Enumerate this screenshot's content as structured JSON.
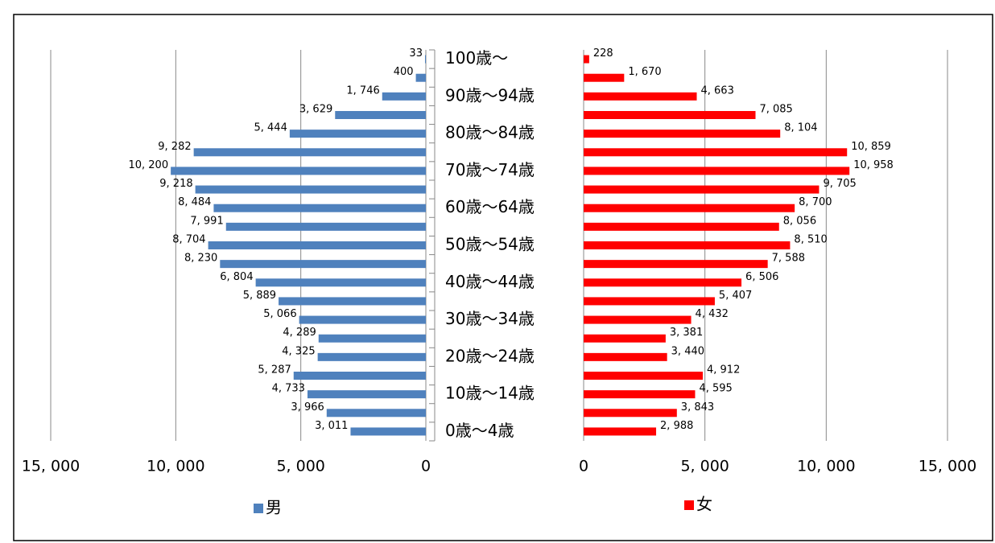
{
  "chart_data": [
    {
      "type": "bar",
      "orientation": "horizontal",
      "categories": [
        "0歳～4歳",
        null,
        "10歳～14歳",
        null,
        "20歳～24歳",
        null,
        "30歳～34歳",
        null,
        "40歳～44歳",
        null,
        "50歳～54歳",
        null,
        "60歳～64歳",
        null,
        "70歳～74歳",
        null,
        "80歳～84歳",
        null,
        "90歳～94歳",
        null,
        "100歳～"
      ],
      "series": [
        {
          "name": "男",
          "color": "#4f81bd",
          "values": [
            3011,
            3966,
            4733,
            5287,
            4325,
            4289,
            5066,
            5889,
            6804,
            8230,
            8704,
            7991,
            8484,
            9218,
            10200,
            9282,
            5444,
            3629,
            1746,
            400,
            33
          ],
          "value_labels": [
            "3, 011",
            "3, 966",
            "4, 733",
            "5, 287",
            "4, 325",
            "4, 289",
            "5, 066",
            "5, 889",
            "6, 804",
            "8, 230",
            "8, 704",
            "7, 991",
            "8, 484",
            "9, 218",
            "10, 200",
            "9, 282",
            "5, 444",
            "3, 629",
            "1, 746",
            "400",
            "33"
          ]
        }
      ],
      "xlim": [
        15000,
        0
      ],
      "xticks": [
        {
          "value": 15000,
          "label": "15, 000"
        },
        {
          "value": 10000,
          "label": "10, 000"
        },
        {
          "value": 5000,
          "label": "5, 000"
        },
        0
      ],
      "grid": true
    },
    {
      "type": "bar",
      "orientation": "horizontal",
      "series": [
        {
          "name": "女",
          "color": "#ff0000",
          "values": [
            2988,
            3843,
            4595,
            4912,
            3440,
            3381,
            4432,
            5407,
            6506,
            7588,
            8510,
            8056,
            8700,
            9705,
            10958,
            10859,
            8104,
            7085,
            4663,
            1670,
            228
          ],
          "value_labels": [
            "2, 988",
            "3, 843",
            "4, 595",
            "4, 912",
            "3, 440",
            "3, 381",
            "4, 432",
            "5, 407",
            "6, 506",
            "7, 588",
            "8, 510",
            "8, 056",
            "8, 700",
            "9, 705",
            "10, 958",
            "10, 859",
            "8, 104",
            "7, 085",
            "4, 663",
            "1, 670",
            "228"
          ]
        }
      ],
      "xlim": [
        0,
        15000
      ],
      "xticks": [
        0,
        {
          "value": 5000,
          "label": "5, 000"
        },
        {
          "value": 10000,
          "label": "10, 000"
        },
        {
          "value": 15000,
          "label": "15, 000"
        }
      ],
      "grid": true
    }
  ]
}
